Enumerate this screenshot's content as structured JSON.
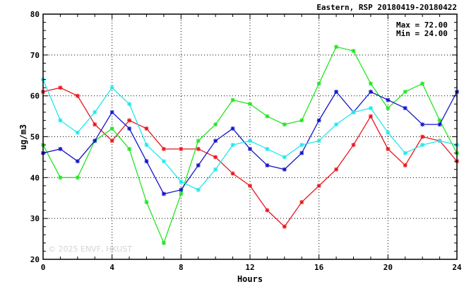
{
  "chart_data": {
    "type": "line",
    "title": "Eastern, RSP 20180419-20180422",
    "xlabel": "Hours",
    "ylabel": "ug/m3",
    "xlim": [
      0,
      24
    ],
    "ylim": [
      20,
      80
    ],
    "xticks": [
      0,
      4,
      8,
      12,
      16,
      20,
      24
    ],
    "yticks": [
      20,
      30,
      40,
      50,
      60,
      70,
      80
    ],
    "grid": true,
    "x": [
      0,
      1,
      2,
      3,
      4,
      5,
      6,
      7,
      8,
      9,
      10,
      11,
      12,
      13,
      14,
      15,
      16,
      17,
      18,
      19,
      20,
      21,
      22,
      23,
      24
    ],
    "series": [
      {
        "color": "#e8151b",
        "values": [
          61,
          62,
          60,
          53,
          49,
          54,
          52,
          47,
          47,
          47,
          45,
          41,
          38,
          32,
          28,
          34,
          38,
          42,
          48,
          55,
          47,
          43,
          50,
          49,
          44
        ]
      },
      {
        "color": "#22e622",
        "values": [
          48,
          40,
          40,
          49,
          52,
          47,
          34,
          24,
          36,
          49,
          53,
          59,
          58,
          55,
          53,
          54,
          63,
          72,
          71,
          63,
          57,
          61,
          63,
          54,
          46
        ]
      },
      {
        "color": "#1414c8",
        "values": [
          46,
          47,
          44,
          49,
          56,
          52,
          44,
          36,
          37,
          43,
          49,
          52,
          47,
          43,
          42,
          46,
          54,
          61,
          56,
          61,
          59,
          57,
          53,
          53,
          61
        ]
      },
      {
        "color": "#22e8ec",
        "values": [
          64,
          54,
          51,
          56,
          62,
          58,
          48,
          44,
          39,
          37,
          42,
          48,
          49,
          47,
          45,
          48,
          49,
          53,
          56,
          57,
          51,
          46,
          48,
          49,
          48
        ]
      }
    ],
    "annotations": {
      "max_label": "Max = 72.00",
      "min_label": "Min = 24.00"
    },
    "watermark": "© 2025  ENVF, HKUST"
  }
}
